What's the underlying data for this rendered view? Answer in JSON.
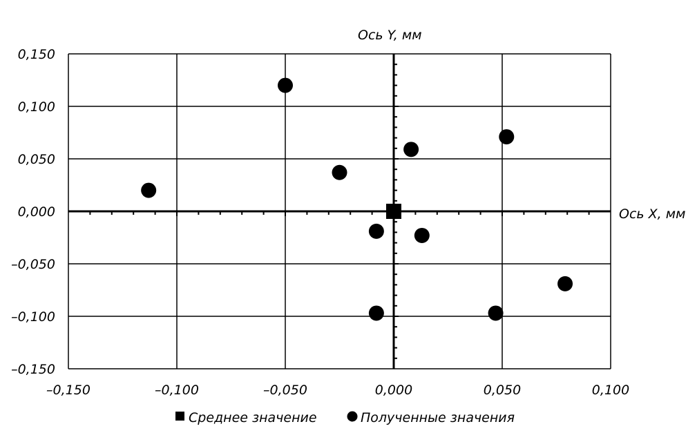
{
  "chart_data": {
    "type": "scatter",
    "title": "",
    "xlabel": "Ось X, мм",
    "ylabel": "Ось Y, мм",
    "xlim": [
      -0.15,
      0.1
    ],
    "ylim": [
      -0.15,
      0.15
    ],
    "x_ticks": [
      -0.15,
      -0.1,
      -0.05,
      0.0,
      0.05,
      0.1
    ],
    "y_ticks": [
      -0.15,
      -0.1,
      -0.05,
      0.0,
      0.05,
      0.1,
      0.15
    ],
    "x_tick_labels": [
      "–0,150",
      "–0,100",
      "–0,050",
      "0,000",
      "0,050",
      "0,100"
    ],
    "y_tick_labels": [
      "–0,150",
      "–0,100",
      "–0,050",
      "0,000",
      "0,050",
      "0,100",
      "0,150"
    ],
    "grid": true,
    "legend_position": "bottom",
    "series": [
      {
        "name": "Среднее значение",
        "marker": "square",
        "color": "#000000",
        "points": [
          [
            0.0,
            0.0
          ]
        ]
      },
      {
        "name": "Полученные значения",
        "marker": "circle",
        "color": "#000000",
        "points": [
          [
            -0.113,
            0.02
          ],
          [
            -0.05,
            0.12
          ],
          [
            -0.025,
            0.037
          ],
          [
            0.008,
            0.059
          ],
          [
            0.052,
            0.071
          ],
          [
            -0.008,
            -0.019
          ],
          [
            0.013,
            -0.023
          ],
          [
            0.079,
            -0.069
          ],
          [
            -0.008,
            -0.097
          ],
          [
            0.047,
            -0.097
          ]
        ]
      }
    ]
  }
}
